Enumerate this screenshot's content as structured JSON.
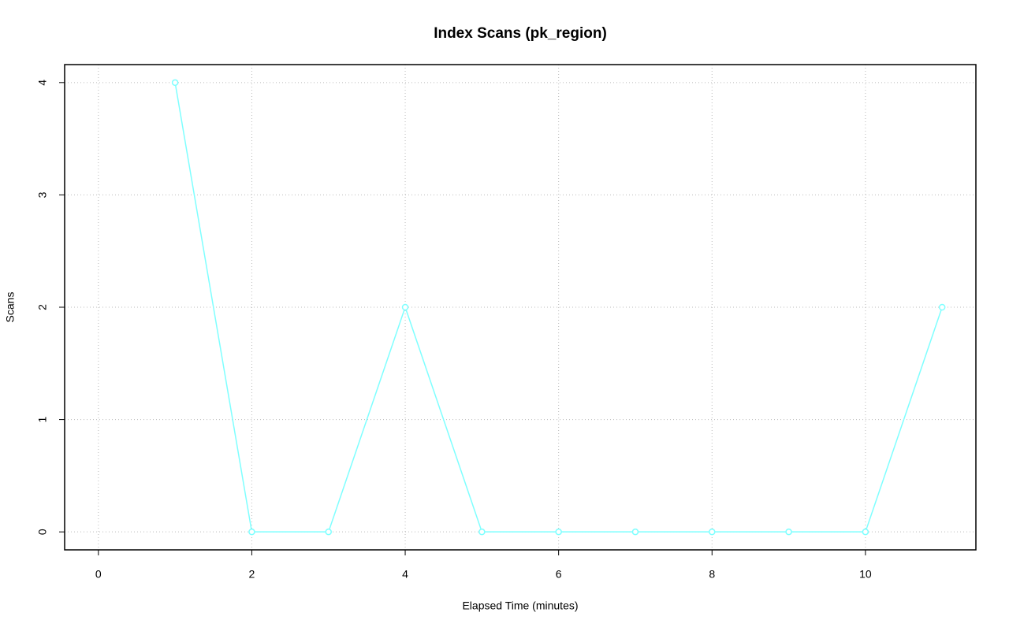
{
  "chart_data": {
    "type": "line",
    "title": "Index Scans (pk_region)",
    "x_label": "Elapsed Time (minutes)",
    "y_label": "Scans",
    "x": [
      1,
      2,
      3,
      4,
      5,
      6,
      7,
      8,
      9,
      10,
      11
    ],
    "series": [
      {
        "name": "pk_region",
        "color": "#7fffff",
        "values": [
          4,
          0,
          0,
          2,
          0,
          0,
          0,
          0,
          0,
          0,
          2
        ]
      }
    ],
    "xlim": [
      -0.44,
      11.44
    ],
    "xticks": [
      0,
      2,
      4,
      6,
      8,
      10
    ],
    "ylim": [
      -0.16,
      4.16
    ],
    "yticks": [
      0,
      1,
      2,
      3,
      4
    ],
    "grid": true,
    "legend": false
  }
}
